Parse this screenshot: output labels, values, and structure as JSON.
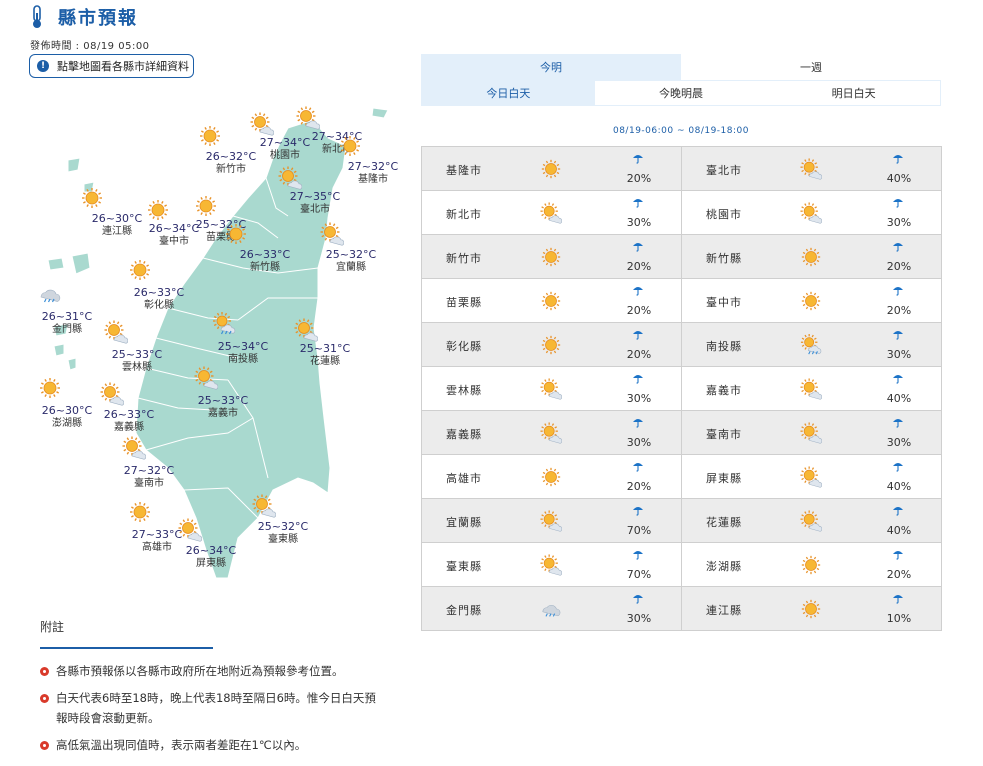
{
  "header": {
    "title": "縣市預報",
    "icon": "thermometer-icon"
  },
  "issue_time": "發佈時間 : 08/19 05:00",
  "detail_button": "點擊地圖看各縣市詳細資料",
  "colors": {
    "brand": "#1c5ea7",
    "tab_active_bg": "#e3effa",
    "land": "#a9d9cf",
    "sun": "#f6a623",
    "bullet": "#d93a2b"
  },
  "map_cities": [
    {
      "name": "新竹市",
      "temp": "26~32°C",
      "icon": "sunny-icon"
    },
    {
      "name": "桃園市",
      "temp": "27~34°C",
      "icon": "partly-cloudy-icon"
    },
    {
      "name": "新北市",
      "temp": "27~34°C",
      "icon": "partly-cloudy-icon"
    },
    {
      "name": "基隆市",
      "temp": "27~32°C",
      "icon": "sunny-icon"
    },
    {
      "name": "臺北市",
      "temp": "27~35°C",
      "icon": "partly-cloudy-icon"
    },
    {
      "name": "連江縣",
      "temp": "26~30°C",
      "icon": "sunny-icon"
    },
    {
      "name": "臺中市",
      "temp": "26~34°C",
      "icon": "sunny-icon"
    },
    {
      "name": "苗栗縣",
      "temp": "25~32°C",
      "icon": "sunny-icon"
    },
    {
      "name": "新竹縣",
      "temp": "26~33°C",
      "icon": "sunny-icon"
    },
    {
      "name": "宜蘭縣",
      "temp": "25~32°C",
      "icon": "partly-cloudy-icon"
    },
    {
      "name": "彰化縣",
      "temp": "26~33°C",
      "icon": "sunny-icon"
    },
    {
      "name": "金門縣",
      "temp": "26~31°C",
      "icon": "cloudy-rain-icon"
    },
    {
      "name": "南投縣",
      "temp": "25~34°C",
      "icon": "partly-cloudy-rain-icon"
    },
    {
      "name": "花蓮縣",
      "temp": "25~31°C",
      "icon": "partly-cloudy-icon"
    },
    {
      "name": "雲林縣",
      "temp": "25~33°C",
      "icon": "partly-cloudy-icon"
    },
    {
      "name": "澎湖縣",
      "temp": "26~30°C",
      "icon": "sunny-icon"
    },
    {
      "name": "嘉義縣",
      "temp": "26~33°C",
      "icon": "partly-cloudy-icon"
    },
    {
      "name": "嘉義市",
      "temp": "25~33°C",
      "icon": "partly-cloudy-icon"
    },
    {
      "name": "臺南市",
      "temp": "27~32°C",
      "icon": "partly-cloudy-icon"
    },
    {
      "name": "高雄市",
      "temp": "27~33°C",
      "icon": "sunny-icon"
    },
    {
      "name": "臺東縣",
      "temp": "25~32°C",
      "icon": "partly-cloudy-icon"
    },
    {
      "name": "屏東縣",
      "temp": "26~34°C",
      "icon": "partly-cloudy-icon"
    }
  ],
  "tabs_top": [
    {
      "label": "今明"
    },
    {
      "label": "一週"
    }
  ],
  "tabs_sub": [
    {
      "label": "今日白天"
    },
    {
      "label": "今晚明晨"
    },
    {
      "label": "明日白天"
    }
  ],
  "time_range": "08/19-06:00 ~ 08/19-18:00",
  "forecast": [
    [
      {
        "name": "基隆市",
        "pop": "20%",
        "icon": "sunny-icon"
      },
      {
        "name": "臺北市",
        "pop": "40%",
        "icon": "partly-cloudy-icon"
      }
    ],
    [
      {
        "name": "新北市",
        "pop": "30%",
        "icon": "partly-cloudy-icon"
      },
      {
        "name": "桃園市",
        "pop": "30%",
        "icon": "partly-cloudy-icon"
      }
    ],
    [
      {
        "name": "新竹市",
        "pop": "20%",
        "icon": "sunny-icon"
      },
      {
        "name": "新竹縣",
        "pop": "20%",
        "icon": "sunny-icon"
      }
    ],
    [
      {
        "name": "苗栗縣",
        "pop": "20%",
        "icon": "sunny-icon"
      },
      {
        "name": "臺中市",
        "pop": "20%",
        "icon": "sunny-icon"
      }
    ],
    [
      {
        "name": "彰化縣",
        "pop": "20%",
        "icon": "sunny-icon"
      },
      {
        "name": "南投縣",
        "pop": "30%",
        "icon": "partly-cloudy-rain-icon"
      }
    ],
    [
      {
        "name": "雲林縣",
        "pop": "30%",
        "icon": "partly-cloudy-icon"
      },
      {
        "name": "嘉義市",
        "pop": "40%",
        "icon": "partly-cloudy-icon"
      }
    ],
    [
      {
        "name": "嘉義縣",
        "pop": "30%",
        "icon": "partly-cloudy-icon"
      },
      {
        "name": "臺南市",
        "pop": "30%",
        "icon": "partly-cloudy-icon"
      }
    ],
    [
      {
        "name": "高雄市",
        "pop": "20%",
        "icon": "sunny-icon"
      },
      {
        "name": "屏東縣",
        "pop": "40%",
        "icon": "partly-cloudy-icon"
      }
    ],
    [
      {
        "name": "宜蘭縣",
        "pop": "70%",
        "icon": "partly-cloudy-icon"
      },
      {
        "name": "花蓮縣",
        "pop": "40%",
        "icon": "partly-cloudy-icon"
      }
    ],
    [
      {
        "name": "臺東縣",
        "pop": "70%",
        "icon": "partly-cloudy-icon"
      },
      {
        "name": "澎湖縣",
        "pop": "20%",
        "icon": "sunny-icon"
      }
    ],
    [
      {
        "name": "金門縣",
        "pop": "30%",
        "icon": "cloudy-rain-icon"
      },
      {
        "name": "連江縣",
        "pop": "10%",
        "icon": "sunny-icon"
      }
    ]
  ],
  "notes": {
    "title": "附註",
    "items": [
      "各縣市預報係以各縣市政府所在地附近為預報參考位置。",
      "白天代表6時至18時，晚上代表18時至隔日6時。惟今日白天預報時段會滾動更新。",
      "高低氣溫出現同值時，表示兩者差距在1℃以內。"
    ]
  }
}
